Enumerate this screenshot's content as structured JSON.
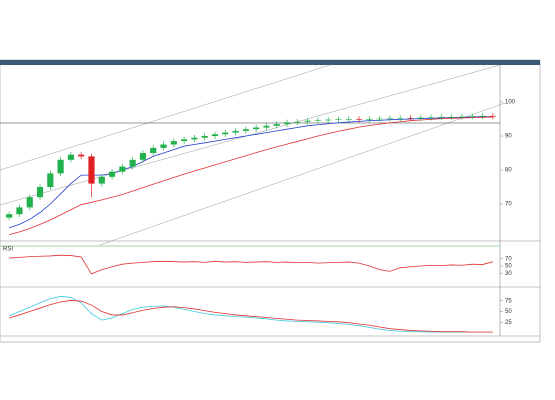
{
  "chart_data": [
    {
      "type": "candlestick",
      "up_color": "#22b14c",
      "down_color": "#e02020",
      "open": [
        66,
        67,
        69,
        72,
        75,
        79,
        83,
        84.5,
        84,
        76,
        78,
        79.5,
        81,
        83,
        85,
        86.5,
        87.5,
        88.5,
        89,
        89.5,
        90,
        90.5,
        91,
        91.5,
        92,
        92.5,
        93,
        93.5,
        94,
        94.2,
        94.5,
        94.6,
        94.8,
        94.9,
        95,
        94.8,
        95,
        95.1,
        95.2,
        95.3,
        95.2,
        95.4,
        95.5,
        95.6,
        95.6,
        95.7,
        95.8,
        95.9
      ],
      "high": [
        67.8,
        69.8,
        72.8,
        75.8,
        79.8,
        83.8,
        85.3,
        85.3,
        84.8,
        78.8,
        80.3,
        81.8,
        83.8,
        85.8,
        87.3,
        88.3,
        89.3,
        89.8,
        90.3,
        90.8,
        91.3,
        91.8,
        92.3,
        92.8,
        93.3,
        93.8,
        94.3,
        94.8,
        95,
        95.3,
        95.4,
        95.6,
        95.7,
        95.8,
        95.8,
        95.8,
        95.9,
        96,
        96.1,
        96.1,
        96.2,
        96.3,
        96.4,
        96.4,
        96.5,
        96.6,
        96.7,
        96.7
      ],
      "low": [
        65.2,
        66.2,
        68.2,
        71.2,
        74.2,
        78.2,
        82.2,
        83.2,
        72,
        75.2,
        77.2,
        78.7,
        80.2,
        82.2,
        84.2,
        85.7,
        86.7,
        87.7,
        88.2,
        88.7,
        89.2,
        89.7,
        90.2,
        90.7,
        91.2,
        91.7,
        92.2,
        92.7,
        93.2,
        93.4,
        93.7,
        93.8,
        94,
        94.1,
        94,
        94,
        94.2,
        94.3,
        94.4,
        94.4,
        94.4,
        94.6,
        94.7,
        94.8,
        94.8,
        94.9,
        95,
        94.9
      ],
      "close": [
        67,
        69,
        72,
        75,
        79,
        83,
        84.5,
        84,
        76,
        78,
        79.5,
        81,
        83,
        85,
        86.5,
        87.5,
        88.5,
        89,
        89.5,
        90,
        90.5,
        91,
        91.5,
        92,
        92.5,
        93,
        93.5,
        94,
        94.2,
        94.5,
        94.6,
        94.8,
        94.9,
        95,
        94.8,
        95,
        95.1,
        95.2,
        95.3,
        95.2,
        95.4,
        95.5,
        95.6,
        95.6,
        95.7,
        95.8,
        95.9,
        95.7
      ],
      "overlays": [
        {
          "color": "#1f3fd0",
          "values": [
            63,
            64,
            65.5,
            67.5,
            70,
            73,
            76,
            78.5,
            78.5,
            78.5,
            79,
            80,
            81,
            82.5,
            84,
            85,
            86,
            87,
            87.5,
            88,
            88.5,
            89,
            89.5,
            90,
            90.5,
            91,
            91.5,
            92,
            92.5,
            93,
            93.3,
            93.6,
            93.9,
            94.1,
            94.3,
            94.5,
            94.6,
            94.8,
            94.9,
            95,
            95.1,
            95.2,
            95.3,
            95.4,
            95.5,
            95.6,
            95.7,
            95.7
          ]
        },
        {
          "color": "#e03030",
          "values": [
            61,
            61.8,
            62.8,
            64,
            65.3,
            66.8,
            68.3,
            69.8,
            70.5,
            71.2,
            72,
            72.8,
            73.8,
            74.8,
            75.8,
            76.8,
            77.8,
            78.8,
            79.7,
            80.6,
            81.5,
            82.4,
            83.3,
            84.2,
            85.1,
            86,
            86.8,
            87.6,
            88.4,
            89.2,
            90,
            90.7,
            91.4,
            92,
            92.6,
            93.1,
            93.5,
            93.9,
            94.2,
            94.5,
            94.7,
            94.9,
            95.1,
            95.2,
            95.3,
            95.4,
            95.5,
            95.6
          ]
        }
      ],
      "ylim": [
        60,
        110
      ],
      "yticks": [
        70,
        80,
        90,
        100
      ]
    },
    {
      "type": "line",
      "title": "RSI",
      "series": [
        {
          "color": "#e03030",
          "values": [
            72,
            74,
            76,
            77,
            78,
            80,
            79,
            75,
            28,
            40,
            48,
            55,
            58,
            60,
            62,
            63,
            62,
            61,
            62,
            60,
            63,
            61,
            62,
            60,
            61,
            62,
            60,
            61,
            59,
            60,
            58,
            59,
            60,
            61,
            58,
            50,
            40,
            35,
            45,
            48,
            50,
            52,
            51,
            53,
            52,
            55,
            54,
            62
          ]
        }
      ],
      "ylim": [
        0,
        100
      ],
      "yticks": [
        30,
        50,
        70
      ]
    },
    {
      "type": "line",
      "series": [
        {
          "color": "#40c8e0",
          "values": [
            40,
            50,
            60,
            70,
            80,
            85,
            83,
            70,
            45,
            30,
            35,
            45,
            55,
            60,
            62,
            63,
            60,
            55,
            50,
            45,
            42,
            40,
            38,
            37,
            35,
            33,
            30,
            28,
            27,
            26,
            25,
            24,
            22,
            20,
            17,
            13,
            9,
            6,
            4,
            3,
            3,
            2,
            2,
            2,
            2,
            2,
            2,
            2
          ]
        },
        {
          "color": "#e03030",
          "values": [
            35,
            42,
            50,
            58,
            66,
            72,
            76,
            74,
            65,
            50,
            42,
            42,
            47,
            53,
            57,
            60,
            61,
            59,
            56,
            52,
            48,
            45,
            42,
            40,
            38,
            36,
            34,
            32,
            30,
            29,
            28,
            27,
            26,
            24,
            21,
            18,
            14,
            10,
            8,
            6,
            5,
            4,
            3,
            3,
            3,
            2,
            2,
            2
          ]
        }
      ],
      "ylim": [
        0,
        100
      ],
      "yticks": [
        25,
        50,
        75
      ]
    }
  ]
}
